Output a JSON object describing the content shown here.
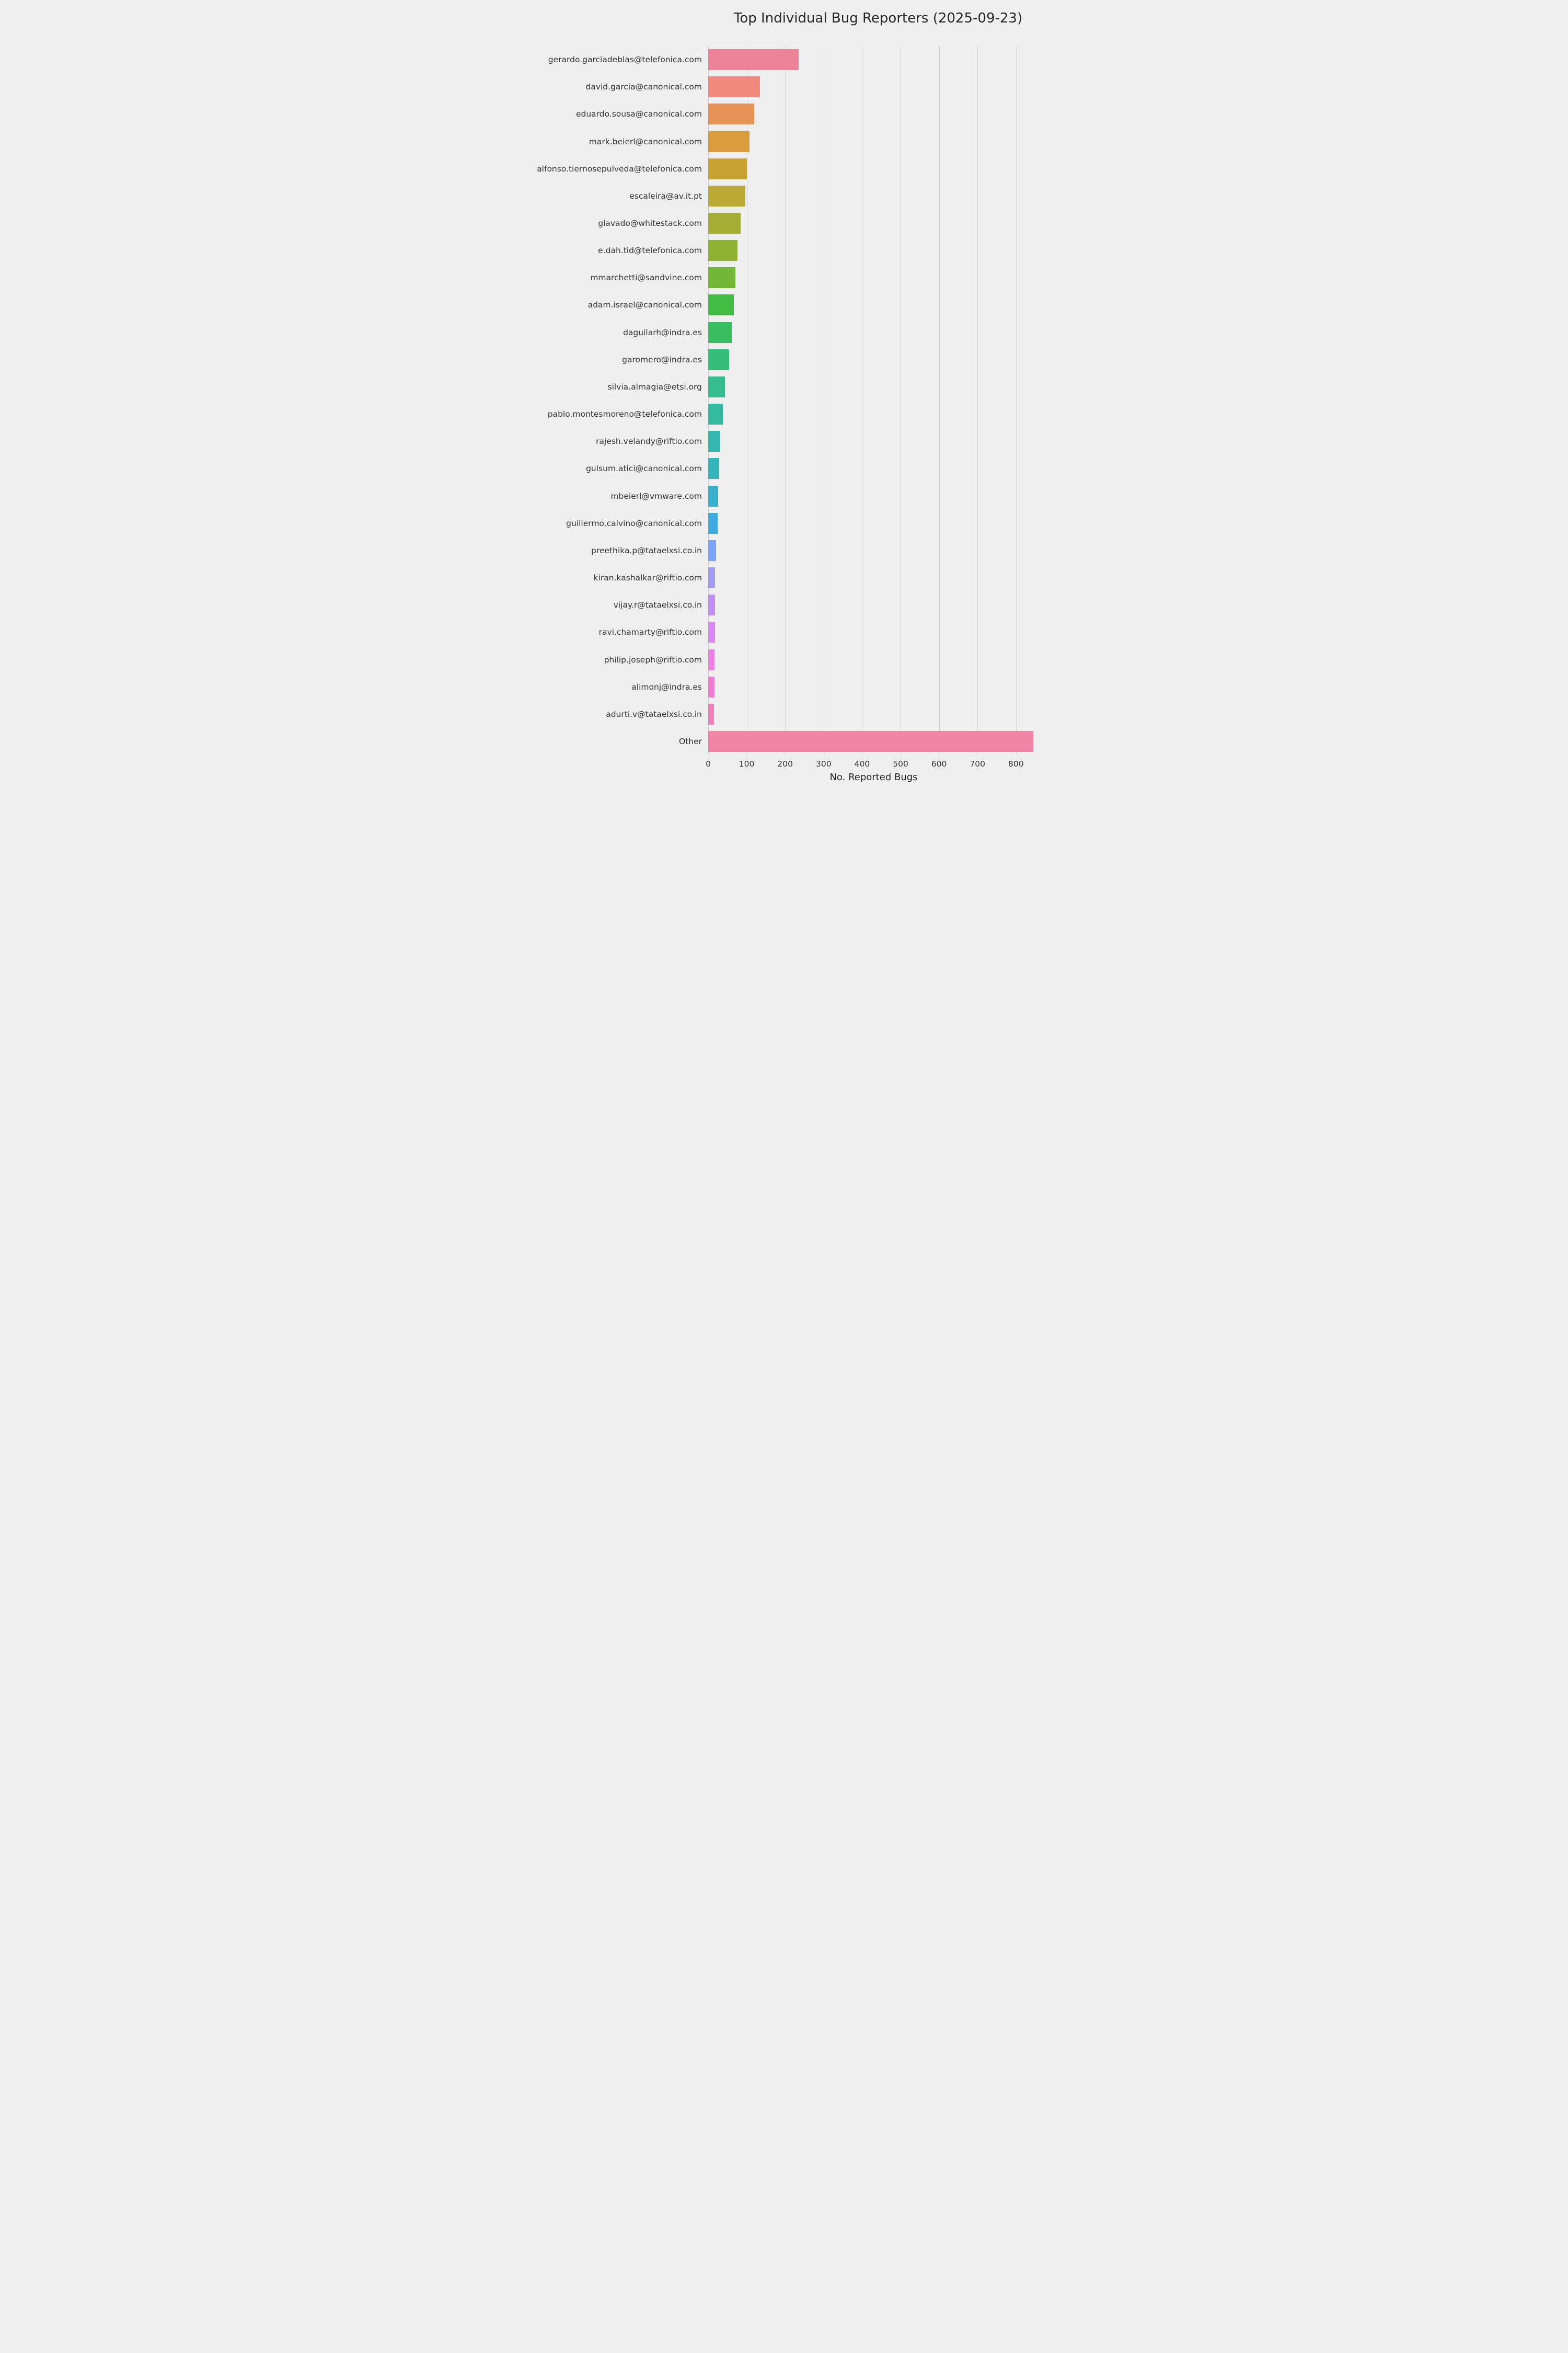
{
  "page": {
    "background": "#efefef"
  },
  "chart_data": {
    "type": "bar",
    "orientation": "horizontal",
    "title": "Top Individual Bug Reporters (2025-09-23)",
    "xlabel": "No. Reported Bugs",
    "ylabel": "",
    "xlim": [
      0,
      860
    ],
    "xticks": [
      0,
      100,
      200,
      300,
      400,
      500,
      600,
      700,
      800
    ],
    "grid": true,
    "legend": false,
    "categories": [
      "gerardo.garciadeblas@telefonica.com",
      "david.garcia@canonical.com",
      "eduardo.sousa@canonical.com",
      "mark.beierl@canonical.com",
      "alfonso.tiernosepulveda@telefonica.com",
      "escaleira@av.it.pt",
      "glavado@whitestack.com",
      "e.dah.tid@telefonica.com",
      "mmarchetti@sandvine.com",
      "adam.israel@canonical.com",
      "daguilarh@indra.es",
      "garomero@indra.es",
      "silvia.almagia@etsi.org",
      "pablo.montesmoreno@telefonica.com",
      "rajesh.velandy@riftio.com",
      "gulsum.atici@canonical.com",
      "mbeierl@vmware.com",
      "guillermo.calvino@canonical.com",
      "preethika.p@tataelxsi.co.in",
      "kiran.kashalkar@riftio.com",
      "vijay.r@tataelxsi.co.in",
      "ravi.chamarty@riftio.com",
      "philip.joseph@riftio.com",
      "alimonj@indra.es",
      "adurti.v@tataelxsi.co.in",
      "Other"
    ],
    "values": [
      235,
      135,
      120,
      108,
      101,
      96,
      84,
      76,
      71,
      67,
      61,
      55,
      44,
      38,
      31,
      28,
      26,
      25,
      21,
      18,
      17,
      17,
      16,
      16,
      15,
      845
    ],
    "bar_colors": [
      "#ed8399",
      "#ef8a7c",
      "#e69357",
      "#d89c3c",
      "#c8a334",
      "#b8a834",
      "#a5ad34",
      "#8fb134",
      "#72b636",
      "#42bc42",
      "#38bd5f",
      "#36bd78",
      "#35bb8d",
      "#35b99f",
      "#35b7ae",
      "#36b4bc",
      "#3ab0ca",
      "#42abdd",
      "#7da2f3",
      "#a29af3",
      "#bf90f2",
      "#d889ef",
      "#e982e2",
      "#ef7fce",
      "#f080ba",
      "#ef84a7"
    ],
    "styles": {
      "background": "#efefef",
      "gridline_color": "#d2d2d2",
      "label_color": "#333333",
      "title_color": "#262626"
    }
  }
}
